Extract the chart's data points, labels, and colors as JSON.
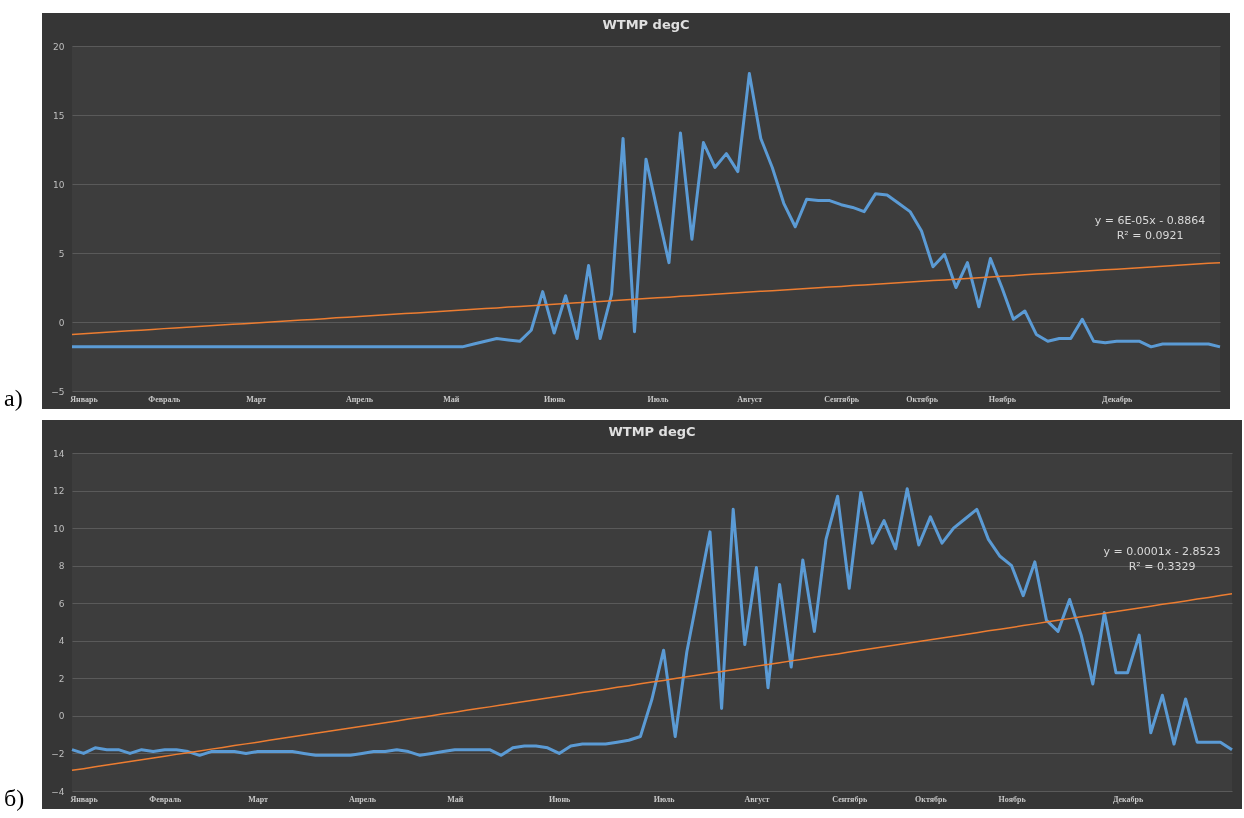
{
  "chart_data": [
    {
      "type": "line",
      "title": "WTMP degC",
      "ylim": [
        -5,
        20
      ],
      "yticks": [
        -5,
        0,
        5,
        10,
        15,
        20
      ],
      "grid": "y",
      "categories": [
        null,
        "Январь",
        null,
        null,
        null,
        null,
        null,
        null,
        "Февраль",
        null,
        null,
        null,
        null,
        null,
        null,
        null,
        "Март",
        null,
        null,
        null,
        null,
        null,
        null,
        null,
        null,
        "Апрель",
        null,
        null,
        null,
        null,
        null,
        null,
        null,
        "Май",
        null,
        null,
        null,
        null,
        null,
        null,
        null,
        null,
        "Июнь",
        null,
        null,
        null,
        null,
        null,
        null,
        null,
        null,
        "Июль",
        null,
        null,
        null,
        null,
        null,
        null,
        null,
        "Август",
        null,
        null,
        null,
        null,
        null,
        null,
        null,
        "Сентябрь",
        null,
        null,
        null,
        null,
        null,
        null,
        "Октябрь",
        null,
        null,
        null,
        null,
        null,
        null,
        "Ноябрь",
        null,
        null,
        null,
        null,
        null,
        null,
        null,
        null,
        null,
        "Декабрь",
        null,
        null,
        null,
        null,
        null,
        null,
        null,
        null,
        null
      ],
      "annotations": [
        "y = 6E-05x - 0.8864",
        "R² = 0.0921",
        "a)"
      ],
      "series": [
        {
          "type": "line",
          "color": "#5b9bd5",
          "values": [
            -1.8,
            -1.8,
            -1.8,
            -1.8,
            -1.8,
            -1.8,
            -1.8,
            -1.8,
            -1.8,
            -1.8,
            -1.8,
            -1.8,
            -1.8,
            -1.8,
            -1.8,
            -1.8,
            -1.8,
            -1.8,
            -1.8,
            -1.8,
            -1.8,
            -1.8,
            -1.8,
            -1.8,
            -1.8,
            -1.8,
            -1.8,
            -1.8,
            -1.8,
            -1.8,
            -1.8,
            -1.8,
            -1.8,
            -1.8,
            -1.8,
            -1.6,
            -1.4,
            -1.2,
            -1.3,
            -1.4,
            -0.6,
            2.2,
            -0.8,
            1.9,
            -1.2,
            4.1,
            -1.2,
            2.0,
            13.3,
            -0.7,
            11.8,
            8.0,
            4.3,
            13.7,
            6.0,
            13.0,
            11.2,
            12.2,
            10.9,
            18.0,
            13.3,
            11.2,
            8.6,
            6.9,
            8.9,
            8.8,
            8.8,
            8.5,
            8.3,
            8.0,
            9.3,
            9.2,
            8.6,
            8.0,
            6.6,
            4.0,
            4.9,
            2.5,
            4.3,
            1.1,
            4.6,
            2.5,
            0.2,
            0.8,
            -0.9,
            -1.4,
            -1.2,
            -1.2,
            0.2,
            -1.4,
            -1.5,
            -1.4,
            -1.4,
            -1.4,
            -1.8,
            -1.6,
            -1.6,
            -1.6,
            -1.6,
            -1.6,
            -1.8
          ]
        },
        {
          "type": "line",
          "color": "#ed7d31",
          "values": [
            -0.9,
            -0.85,
            -0.8,
            -0.74,
            -0.69,
            -0.64,
            -0.59,
            -0.54,
            -0.48,
            -0.43,
            -0.38,
            -0.33,
            -0.28,
            -0.22,
            -0.17,
            -0.12,
            -0.07,
            -0.02,
            0.04,
            0.09,
            0.14,
            0.19,
            0.24,
            0.3,
            0.35,
            0.4,
            0.45,
            0.5,
            0.56,
            0.61,
            0.66,
            0.71,
            0.76,
            0.82,
            0.87,
            0.92,
            0.97,
            1.02,
            1.08,
            1.13,
            1.18,
            1.23,
            1.28,
            1.34,
            1.39,
            1.44,
            1.49,
            1.54,
            1.6,
            1.65,
            1.7,
            1.75,
            1.8,
            1.86,
            1.91,
            1.96,
            2.01,
            2.06,
            2.12,
            2.17,
            2.22,
            2.27,
            2.32,
            2.38,
            2.43,
            2.48,
            2.53,
            2.58,
            2.64,
            2.69,
            2.74,
            2.79,
            2.84,
            2.9,
            2.95,
            3.0,
            3.05,
            3.1,
            3.16,
            3.21,
            3.26,
            3.31,
            3.36,
            3.42,
            3.47,
            3.52,
            3.57,
            3.62,
            3.68,
            3.73,
            3.78,
            3.83,
            3.88,
            3.94,
            3.99,
            4.04,
            4.09,
            4.14,
            4.2,
            4.25,
            4.3
          ]
        }
      ]
    },
    {
      "type": "line",
      "title": "WTMP degC",
      "ylim": [
        -4,
        14
      ],
      "yticks": [
        -4,
        -2,
        0,
        2,
        4,
        6,
        8,
        10,
        12,
        14
      ],
      "grid": "y",
      "categories": [
        null,
        "Январь",
        null,
        null,
        null,
        null,
        null,
        null,
        "Февраль",
        null,
        null,
        null,
        null,
        null,
        null,
        null,
        "Март",
        null,
        null,
        null,
        null,
        null,
        null,
        null,
        null,
        "Апрель",
        null,
        null,
        null,
        null,
        null,
        null,
        null,
        "Май",
        null,
        null,
        null,
        null,
        null,
        null,
        null,
        null,
        "Июнь",
        null,
        null,
        null,
        null,
        null,
        null,
        null,
        null,
        "Июль",
        null,
        null,
        null,
        null,
        null,
        null,
        null,
        "Август",
        null,
        null,
        null,
        null,
        null,
        null,
        null,
        "Сентябрь",
        null,
        null,
        null,
        null,
        null,
        null,
        "Октябрь",
        null,
        null,
        null,
        null,
        null,
        null,
        "Ноябрь",
        null,
        null,
        null,
        null,
        null,
        null,
        null,
        null,
        null,
        "Декабрь",
        null,
        null,
        null,
        null,
        null,
        null,
        null,
        null,
        null
      ],
      "annotations": [
        "y = 0.0001x - 2.8523",
        "R² = 0.3329",
        "б)"
      ],
      "series": [
        {
          "type": "line",
          "color": "#5b9bd5",
          "values": [
            -1.8,
            -2.0,
            -1.7,
            -1.8,
            -1.8,
            -2.0,
            -1.8,
            -1.9,
            -1.8,
            -1.8,
            -1.9,
            -2.1,
            -1.9,
            -1.9,
            -1.9,
            -2.0,
            -1.9,
            -1.9,
            -1.9,
            -1.9,
            -2.0,
            -2.1,
            -2.1,
            -2.1,
            -2.1,
            -2.0,
            -1.9,
            -1.9,
            -1.8,
            -1.9,
            -2.1,
            -2.0,
            -1.9,
            -1.8,
            -1.8,
            -1.8,
            -1.8,
            -2.1,
            -1.7,
            -1.6,
            -1.6,
            -1.7,
            -2.0,
            -1.6,
            -1.5,
            -1.5,
            -1.5,
            -1.4,
            -1.3,
            -1.1,
            0.9,
            3.5,
            -1.1,
            3.4,
            6.6,
            9.8,
            0.4,
            11.0,
            3.8,
            7.9,
            1.5,
            7.0,
            2.6,
            8.3,
            4.5,
            9.4,
            11.7,
            6.8,
            11.9,
            9.2,
            10.4,
            8.9,
            12.1,
            9.1,
            10.6,
            9.2,
            10.0,
            10.5,
            11.0,
            9.4,
            8.5,
            8.0,
            6.4,
            8.2,
            5.1,
            4.5,
            6.2,
            4.3,
            1.7,
            5.5,
            2.3,
            2.3,
            4.3,
            -0.9,
            1.1,
            -1.5,
            0.9,
            -1.4,
            -1.4,
            -1.4,
            -1.8
          ]
        },
        {
          "type": "line",
          "color": "#ed7d31",
          "values": [
            -2.9,
            -2.81,
            -2.71,
            -2.62,
            -2.52,
            -2.43,
            -2.34,
            -2.24,
            -2.15,
            -2.05,
            -1.96,
            -1.87,
            -1.77,
            -1.68,
            -1.58,
            -1.49,
            -1.4,
            -1.3,
            -1.21,
            -1.11,
            -1.02,
            -0.93,
            -0.83,
            -0.74,
            -0.64,
            -0.55,
            -0.46,
            -0.36,
            -0.27,
            -0.17,
            -0.08,
            0.01,
            0.11,
            0.2,
            0.3,
            0.39,
            0.48,
            0.58,
            0.67,
            0.77,
            0.86,
            0.95,
            1.05,
            1.14,
            1.24,
            1.33,
            1.42,
            1.52,
            1.61,
            1.71,
            1.8,
            1.89,
            1.99,
            2.08,
            2.18,
            2.27,
            2.36,
            2.46,
            2.55,
            2.65,
            2.74,
            2.83,
            2.93,
            3.02,
            3.12,
            3.21,
            3.3,
            3.4,
            3.49,
            3.59,
            3.68,
            3.77,
            3.87,
            3.96,
            4.06,
            4.15,
            4.24,
            4.34,
            4.43,
            4.53,
            4.62,
            4.71,
            4.81,
            4.9,
            5.0,
            5.09,
            5.18,
            5.28,
            5.37,
            5.47,
            5.56,
            5.65,
            5.75,
            5.84,
            5.94,
            6.03,
            6.12,
            6.22,
            6.31,
            6.41,
            6.5
          ]
        }
      ]
    }
  ]
}
